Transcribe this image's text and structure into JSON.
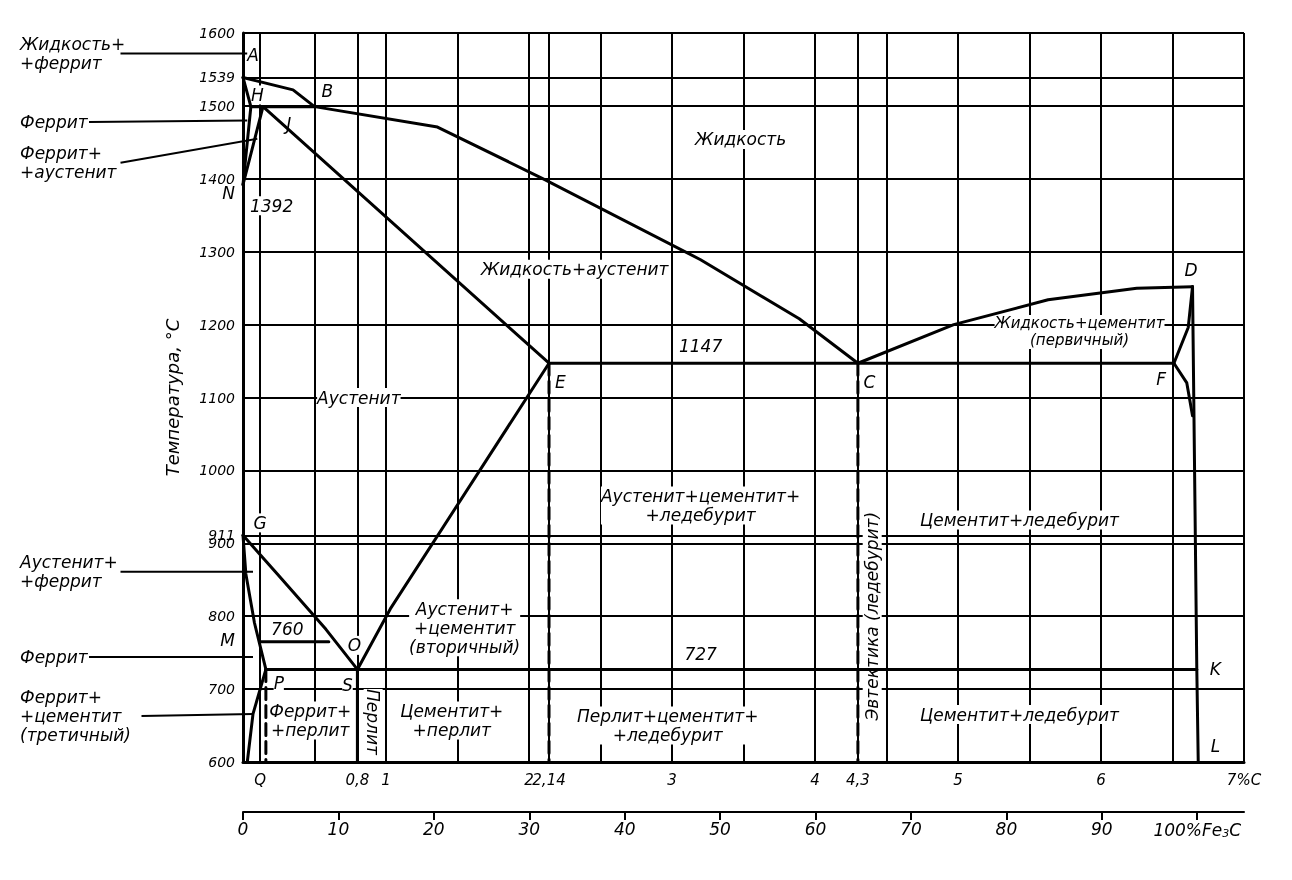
{
  "chart_data": {
    "type": "line",
    "ylabel": "Температура, °С",
    "marker": "none",
    "line_style": "solid",
    "grid": true,
    "xlim": [
      0,
      7
    ],
    "xticks": [
      {
        "value": 0.12,
        "label": "Q"
      },
      {
        "value": 0.5,
        "label": null
      },
      {
        "value": 0.8,
        "label": "0,8"
      },
      1,
      {
        "value": 1.5,
        "label": null
      },
      2,
      {
        "value": 2.14,
        "label": "2,14"
      },
      {
        "value": 2.5,
        "label": null
      },
      3,
      {
        "value": 3.5,
        "label": null
      },
      4,
      {
        "value": 4.3,
        "label": "4,3"
      },
      {
        "value": 4.5,
        "label": null
      },
      5,
      {
        "value": 5.5,
        "label": null
      },
      6,
      {
        "value": 6.5,
        "label": null
      },
      {
        "value": 7,
        "label": "7%C"
      }
    ],
    "x2lim": [
      0,
      104.9
    ],
    "x2ticks": [
      0,
      10,
      20,
      30,
      40,
      50,
      60,
      70,
      80,
      90,
      {
        "value": 100,
        "label": "100%Fe$_{3}$C"
      }
    ],
    "ylim": [
      600,
      1600
    ],
    "yticks": [
      600,
      700,
      800,
      900,
      911,
      1000,
      1100,
      1200,
      1300,
      1400,
      1500,
      1539,
      1600
    ],
    "series": [
      {
        "color": "#000000",
        "x": [
          0,
          0.35,
          0.5,
          1.36,
          2.11,
          3.2,
          3.89,
          4.3
        ],
        "values": [
          1539,
          1522,
          1499,
          1471,
          1399,
          1289,
          1208,
          1147
        ]
      },
      {
        "color": "#000000",
        "x": [
          0,
          0.055,
          0
        ],
        "values": [
          1539,
          1499,
          1392
        ]
      },
      {
        "color": "#000000",
        "x": [
          0.055,
          0.5
        ],
        "values": [
          1499,
          1499
        ]
      },
      {
        "color": "#000000",
        "x": [
          0,
          0.14
        ],
        "values": [
          1392,
          1499
        ]
      },
      {
        "color": "#000000",
        "x": [
          0.14,
          2.14
        ],
        "values": [
          1499,
          1147
        ]
      },
      {
        "color": "#000000",
        "x": [
          2.14,
          6.51
        ],
        "values": [
          1147,
          1147
        ]
      },
      {
        "color": "#000000",
        "x": [
          4.3,
          4.97,
          5.63,
          6.25,
          6.64
        ],
        "values": [
          1147,
          1200,
          1234,
          1250,
          1252
        ]
      },
      {
        "color": "#000000",
        "x": [
          6.64,
          6.67,
          6.68
        ],
        "values": [
          1252,
          727,
          600
        ]
      },
      {
        "color": "#000000",
        "x": [
          6.51,
          6.61,
          6.64
        ],
        "values": [
          1147,
          1196,
          1252
        ]
      },
      {
        "color": "#000000",
        "x": [
          6.51,
          6.6,
          6.64
        ],
        "values": [
          1147,
          1120,
          1075
        ]
      },
      {
        "color": "#000000",
        "x": [
          0,
          0.24,
          0.58,
          0.8
        ],
        "values": [
          911,
          858,
          782,
          727
        ]
      },
      {
        "color": "#000000",
        "x": [
          0.8,
          1.03,
          2.14
        ],
        "values": [
          727,
          810,
          1147
        ]
      },
      {
        "color": "#000000",
        "x": [
          0,
          0.02,
          0.08,
          0.16
        ],
        "values": [
          911,
          858,
          791,
          727
        ]
      },
      {
        "color": "#000000",
        "x": [
          0.16,
          0.07,
          0.03
        ],
        "values": [
          727,
          666,
          600
        ]
      },
      {
        "color": "#000000",
        "x": [
          0.16,
          6.67
        ],
        "values": [
          727,
          727
        ]
      },
      {
        "color": "#000000",
        "x": [
          0.12,
          0.6
        ],
        "values": [
          765,
          765
        ]
      },
      {
        "color": "#000000",
        "x": [
          0.8,
          0.8
        ],
        "values": [
          727,
          600
        ]
      },
      {
        "color": "#000000",
        "line_style": "dashed",
        "x": [
          2.14,
          2.14
        ],
        "values": [
          1147,
          600
        ]
      },
      {
        "color": "#000000",
        "line_style": "dashed",
        "x": [
          4.3,
          4.3
        ],
        "values": [
          1147,
          600
        ]
      },
      {
        "color": "#000000",
        "line_style": "dashed",
        "x": [
          0.16,
          0.16
        ],
        "values": [
          727,
          600
        ]
      }
    ],
    "annotations": [
      "Жидкость+\n+феррит",
      {
        "text": "Феррит",
        "x": 0.03,
        "y": 1480
      },
      {
        "text": "Феррит+\n+аустенит",
        "x": 0.1,
        "y": 1455
      },
      "Аустенит+\n+феррит",
      "Феррит",
      {
        "text": "Феррит+\n+цементит\n(третичный)",
        "x": 0.07,
        "y": 666
      },
      "N",
      "M",
      {
        "text": "A",
        "x": 0.07,
        "y": 1570
      },
      {
        "text": "B",
        "x": 0.59,
        "y": 1521
      },
      {
        "text": "H",
        "x": 0.1,
        "y": 1515
      },
      {
        "text": "J",
        "x": 0.32,
        "y": 1475
      },
      {
        "text": "1392",
        "x": 0.2,
        "y": 1363
      },
      "Жидкость",
      "Жидкость+аустенит",
      {
        "text": "1147",
        "x": 3.2,
        "y": 1170
      },
      "Аустенит",
      "Жидкость+цементит\n(первичный)",
      {
        "text": "E",
        "x": 2.22,
        "y": 1121
      },
      {
        "text": "C",
        "x": 4.38,
        "y": 1121
      },
      {
        "text": "D",
        "x": 6.63,
        "y": 1275
      },
      {
        "text": "F",
        "x": 6.42,
        "y": 1125
      },
      "Аустенит+цементит+\n+ледебурит",
      "Цементит+ледебурит",
      {
        "text": "G",
        "x": 0.12,
        "y": 928
      },
      "Аустенит+\n+цементит\n(вторичный)",
      {
        "text": "760",
        "x": 0.31,
        "y": 782
      },
      {
        "text": "O",
        "x": 0.78,
        "y": 760
      },
      {
        "text": "727",
        "x": 3.2,
        "y": 748
      },
      {
        "text": "P",
        "x": 0.25,
        "y": 708
      },
      {
        "text": "S",
        "x": 0.73,
        "y": 706
      },
      {
        "text": "K",
        "x": 6.8,
        "y": 728
      },
      {
        "text": "L",
        "x": 6.8,
        "y": 622
      },
      "Феррит+\n+перлит",
      "Перлит",
      "Цементит+\n+перлит",
      "Перлит+цементит+\n+ледебурит",
      "Эвтектика (ледебурит)",
      "Цементит+ледебурит"
    ]
  }
}
